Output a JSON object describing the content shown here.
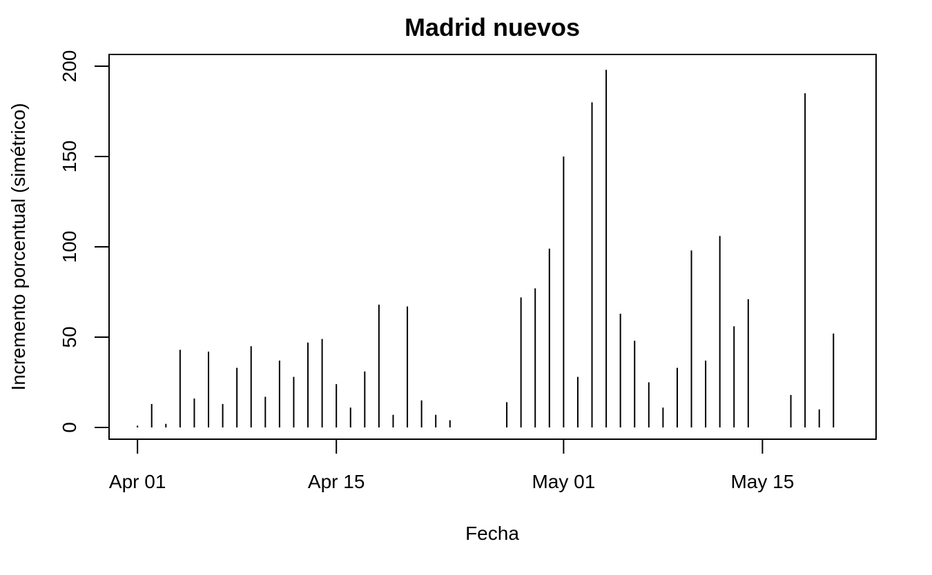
{
  "chart_data": {
    "type": "bar",
    "style": "histogram-lines",
    "title": "Madrid nuevos",
    "xlabel": "Fecha",
    "ylabel": "Incremento porcentual (simétrico)",
    "ylim": [
      0,
      200
    ],
    "xlim": [
      "2020-03-30",
      "2020-05-23"
    ],
    "grid": false,
    "x_ticks": [
      {
        "date": "2020-04-01",
        "label": "Apr 01"
      },
      {
        "date": "2020-04-15",
        "label": "Apr 15"
      },
      {
        "date": "2020-05-01",
        "label": "May 01"
      },
      {
        "date": "2020-05-15",
        "label": "May 15"
      }
    ],
    "y_ticks": [
      0,
      50,
      100,
      150,
      200
    ],
    "x": [
      "2020-04-01",
      "2020-04-02",
      "2020-04-03",
      "2020-04-04",
      "2020-04-05",
      "2020-04-06",
      "2020-04-07",
      "2020-04-08",
      "2020-04-09",
      "2020-04-10",
      "2020-04-11",
      "2020-04-12",
      "2020-04-13",
      "2020-04-14",
      "2020-04-15",
      "2020-04-16",
      "2020-04-17",
      "2020-04-18",
      "2020-04-19",
      "2020-04-20",
      "2020-04-21",
      "2020-04-22",
      "2020-04-23",
      "2020-04-27",
      "2020-04-28",
      "2020-04-29",
      "2020-04-30",
      "2020-05-01",
      "2020-05-02",
      "2020-05-03",
      "2020-05-04",
      "2020-05-05",
      "2020-05-06",
      "2020-05-07",
      "2020-05-08",
      "2020-05-09",
      "2020-05-10",
      "2020-05-11",
      "2020-05-12",
      "2020-05-13",
      "2020-05-14",
      "2020-05-17",
      "2020-05-18",
      "2020-05-19",
      "2020-05-20"
    ],
    "values": [
      1,
      13,
      2,
      43,
      16,
      42,
      13,
      33,
      45,
      17,
      37,
      28,
      47,
      49,
      24,
      11,
      31,
      68,
      7,
      67,
      15,
      7,
      4,
      14,
      72,
      77,
      99,
      150,
      28,
      180,
      198,
      63,
      48,
      25,
      11,
      33,
      98,
      37,
      106,
      56,
      71,
      18,
      185,
      10,
      52
    ]
  }
}
